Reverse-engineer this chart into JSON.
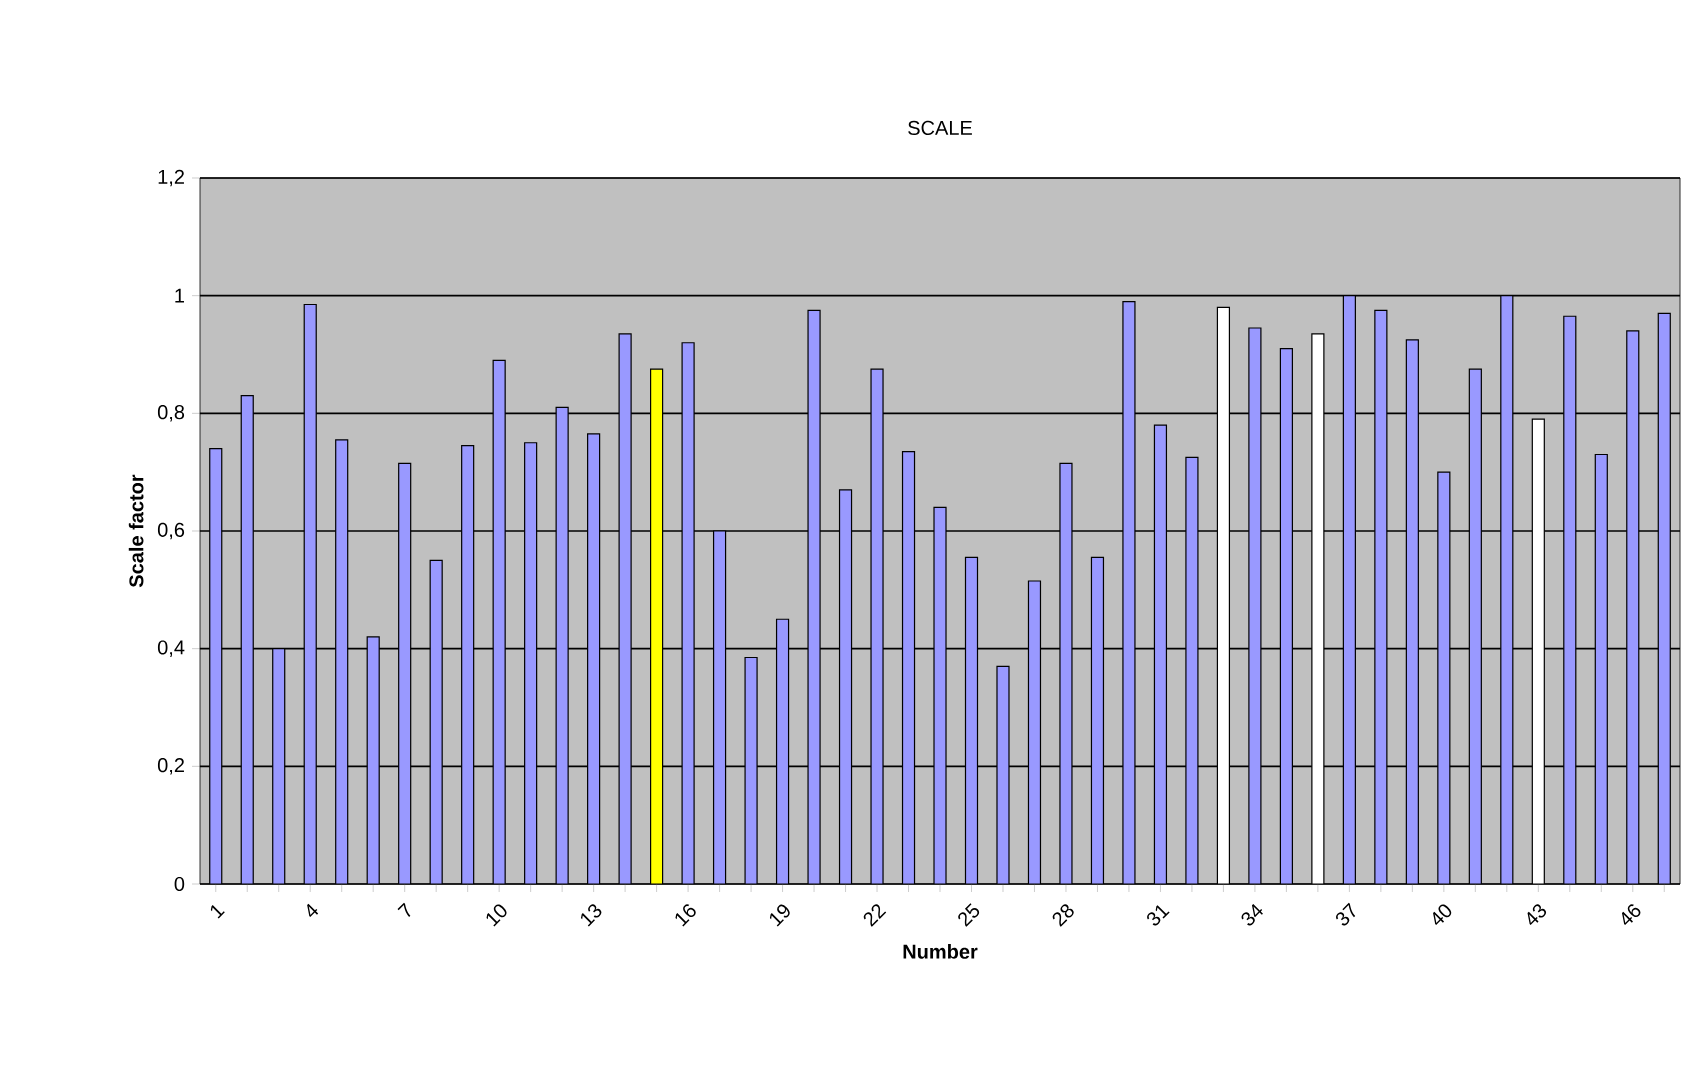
{
  "chart_data": {
    "type": "bar",
    "title": "SCALE",
    "xlabel": "Number",
    "ylabel": "Scale factor",
    "categories": [
      "1",
      null,
      null,
      "4",
      null,
      null,
      "7",
      null,
      null,
      "10",
      null,
      null,
      "13",
      null,
      null,
      "16",
      null,
      null,
      "19",
      null,
      null,
      "22",
      null,
      null,
      "25",
      null,
      null,
      "28",
      null,
      null,
      "31",
      null,
      null,
      "34",
      null,
      null,
      "37",
      null,
      null,
      "40",
      null,
      null,
      "43",
      null,
      null,
      "46",
      null
    ],
    "values": [
      0.74,
      0.83,
      0.4,
      0.985,
      0.755,
      0.42,
      0.715,
      0.55,
      0.745,
      0.89,
      0.75,
      0.81,
      0.765,
      0.935,
      0.875,
      0.92,
      0.6,
      0.385,
      0.45,
      0.975,
      0.67,
      0.875,
      0.735,
      0.64,
      0.555,
      0.37,
      0.515,
      0.715,
      0.555,
      0.99,
      0.78,
      0.725,
      0.98,
      0.945,
      0.91,
      0.935,
      1.0,
      0.975,
      0.925,
      0.7,
      0.875,
      1.0,
      0.79,
      0.965,
      0.73,
      0.94,
      0.97
    ],
    "colors": [
      "#9999ff",
      "#9999ff",
      "#9999ff",
      "#9999ff",
      "#9999ff",
      "#9999ff",
      "#9999ff",
      "#9999ff",
      "#9999ff",
      "#9999ff",
      "#9999ff",
      "#9999ff",
      "#9999ff",
      "#9999ff",
      "#ffff00",
      "#9999ff",
      "#9999ff",
      "#9999ff",
      "#9999ff",
      "#9999ff",
      "#9999ff",
      "#9999ff",
      "#9999ff",
      "#9999ff",
      "#9999ff",
      "#9999ff",
      "#9999ff",
      "#9999ff",
      "#9999ff",
      "#9999ff",
      "#9999ff",
      "#9999ff",
      "#ffffff",
      "#9999ff",
      "#9999ff",
      "#ffffff",
      "#9999ff",
      "#9999ff",
      "#9999ff",
      "#9999ff",
      "#9999ff",
      "#9999ff",
      "#ffffff",
      "#9999ff",
      "#9999ff",
      "#9999ff",
      "#9999ff"
    ],
    "ylim": [
      0,
      1.2
    ],
    "yticks": [
      0,
      {
        "value": 0.2,
        "label": "0,2"
      },
      {
        "value": 0.4,
        "label": "0,4"
      },
      {
        "value": 0.6,
        "label": "0,6"
      },
      {
        "value": 0.8,
        "label": "0,8"
      },
      1,
      {
        "value": 1.2,
        "label": "1,2"
      }
    ],
    "grid": "y"
  }
}
